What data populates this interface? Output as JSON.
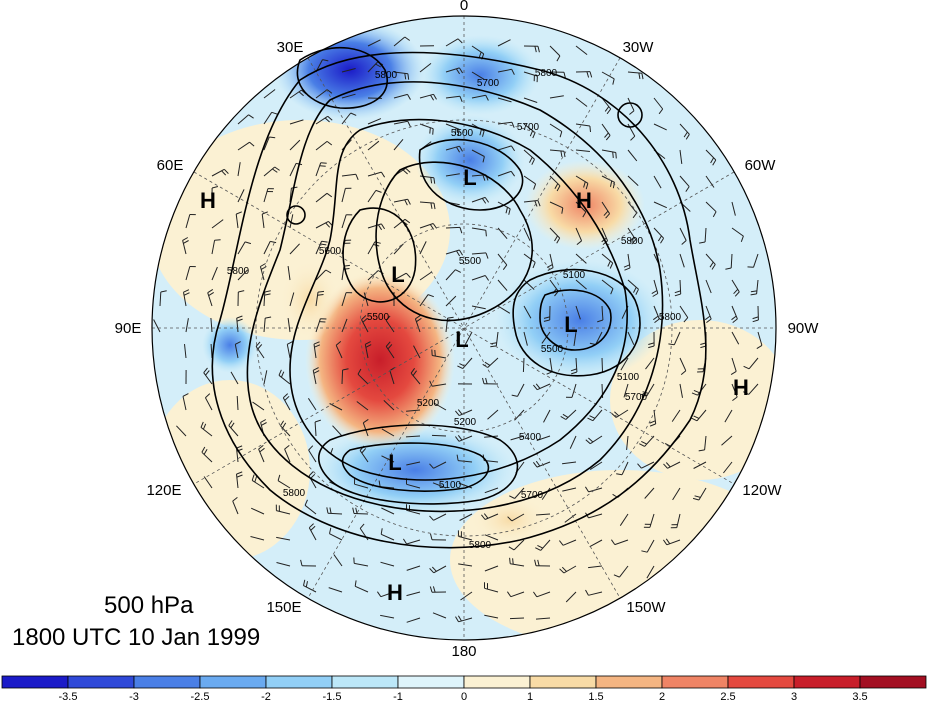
{
  "caption": {
    "level": "500 hPa",
    "time": "1800 UTC 10 Jan 1999"
  },
  "longitude_labels": [
    "0",
    "30W",
    "60W",
    "90W",
    "120W",
    "150W",
    "180",
    "150E",
    "120E",
    "90E",
    "60E",
    "30E"
  ],
  "contour_labels": [
    "5800",
    "5700",
    "5700",
    "5800",
    "5500",
    "5500",
    "5800",
    "5100",
    "5500",
    "5200",
    "5500",
    "5400",
    "5200",
    "5100",
    "5700",
    "5800",
    "5800",
    "5600",
    "5100",
    "5700",
    "5800",
    "5800"
  ],
  "pressure_centers": [
    {
      "type": "H"
    },
    {
      "type": "L"
    },
    {
      "type": "H"
    },
    {
      "type": "L"
    },
    {
      "type": "L"
    },
    {
      "type": "L"
    },
    {
      "type": "H"
    },
    {
      "type": "L"
    },
    {
      "type": "H"
    }
  ],
  "colorbar": {
    "labels": [
      "-3.5",
      "-3",
      "-2.5",
      "-2",
      "-1.5",
      "-1",
      "0",
      "1",
      "1.5",
      "2",
      "2.5",
      "3",
      "3.5"
    ],
    "colors": [
      "#1b1bc8",
      "#2f49d8",
      "#4a7fe6",
      "#6aaaf0",
      "#92cff6",
      "#bce7f8",
      "#def4fb",
      "#fbf1d3",
      "#f8dba6",
      "#f4b582",
      "#ef8465",
      "#e4493f",
      "#c81e2a",
      "#a30f22"
    ]
  }
}
